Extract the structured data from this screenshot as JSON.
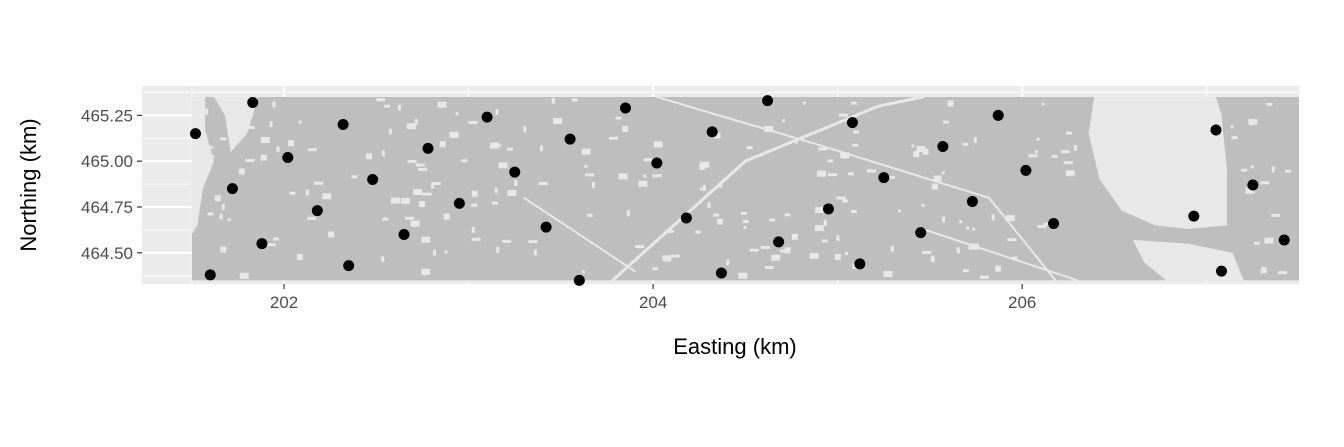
{
  "chart_data": {
    "type": "scatter",
    "xlabel": "Easting (km)",
    "ylabel": "Northing (km)",
    "xlim": [
      201.23,
      207.5
    ],
    "ylim": [
      464.33,
      465.41
    ],
    "x_ticks": [
      202,
      204,
      206
    ],
    "x_tick_labels": [
      "202",
      "204",
      "206"
    ],
    "y_ticks": [
      464.5,
      464.75,
      465.0,
      465.25
    ],
    "y_tick_labels": [
      "464.50",
      "464.75",
      "465.00",
      "465.25"
    ],
    "grid": true,
    "legend": "none",
    "raster_extent": {
      "x": [
        201.5,
        207.5
      ],
      "y": [
        464.35,
        465.35
      ]
    },
    "x": [
      201.52,
      201.6,
      201.72,
      201.83,
      201.88,
      202.02,
      202.18,
      202.32,
      202.35,
      202.48,
      202.65,
      202.78,
      202.95,
      203.1,
      203.25,
      203.42,
      203.55,
      203.6,
      203.85,
      204.02,
      204.18,
      204.32,
      204.37,
      204.62,
      204.68,
      204.95,
      205.08,
      205.12,
      205.25,
      205.45,
      205.57,
      205.73,
      205.87,
      206.02,
      206.17,
      206.93,
      207.05,
      207.08,
      207.25,
      207.42
    ],
    "y": [
      465.15,
      464.38,
      464.85,
      465.32,
      464.55,
      465.02,
      464.73,
      465.2,
      464.43,
      464.9,
      464.6,
      465.07,
      464.77,
      465.24,
      464.94,
      464.64,
      465.12,
      464.35,
      465.29,
      464.99,
      464.69,
      465.16,
      464.39,
      465.33,
      464.56,
      464.74,
      465.21,
      464.44,
      464.91,
      464.61,
      465.08,
      464.78,
      465.25,
      464.95,
      464.66,
      464.7,
      465.17,
      464.4,
      464.87,
      464.57
    ],
    "colors": {
      "panel": "#ebebeb",
      "gridline": "#ffffff",
      "raster_fill": "#bebebe",
      "raster_gap": "#e8e8e8",
      "point": "#000000"
    }
  }
}
